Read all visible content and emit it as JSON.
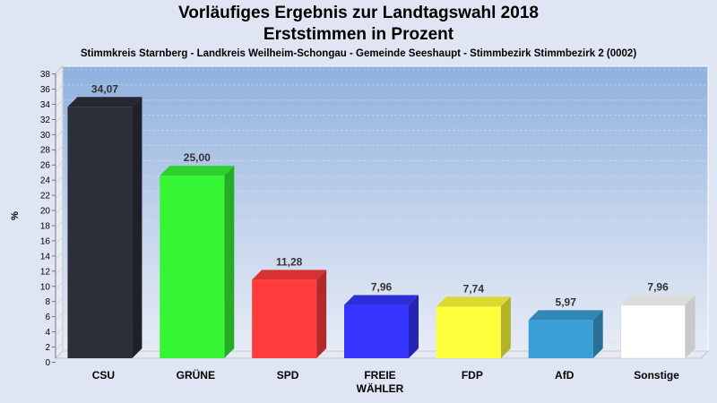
{
  "header": {
    "title_line1": "Vorläufiges Ergebnis zur Landtagswahl 2018",
    "title_line2": "Erststimmen in Prozent",
    "subtitle": "Stimmkreis Starnberg - Landkreis Weilheim-Schongau - Gemeinde Seeshaupt - Stimmbezirk Stimmbezirk 2 (0002)"
  },
  "chart_data": {
    "type": "bar",
    "title": "Vorläufiges Ergebnis zur Landtagswahl 2018",
    "subtitle": "Erststimmen in Prozent",
    "xlabel": "",
    "ylabel": "%",
    "ylim": [
      0,
      38
    ],
    "yticks": [
      0,
      2,
      4,
      6,
      8,
      10,
      12,
      14,
      16,
      18,
      20,
      22,
      24,
      26,
      28,
      30,
      32,
      34,
      36,
      38
    ],
    "grid": true,
    "categories": [
      "CSU",
      "GRÜNE",
      "SPD",
      "FREIE WÄHLER",
      "FDP",
      "AfD",
      "Sonstige"
    ],
    "category_lines": [
      [
        "CSU"
      ],
      [
        "GRÜNE"
      ],
      [
        "SPD"
      ],
      [
        "FREIE",
        "WÄHLER"
      ],
      [
        "FDP"
      ],
      [
        "AfD"
      ],
      [
        "Sonstige"
      ]
    ],
    "values": [
      34.07,
      25.0,
      11.28,
      7.96,
      7.74,
      5.97,
      7.96
    ],
    "value_labels": [
      "34,07",
      "25,00",
      "11,28",
      "7,96",
      "7,74",
      "5,97",
      "7,96"
    ],
    "colors": [
      "#2b2f3a",
      "#35f535",
      "#ff3b3b",
      "#3535ff",
      "#ffff3b",
      "#3a9fd6",
      "#ffffff"
    ]
  }
}
